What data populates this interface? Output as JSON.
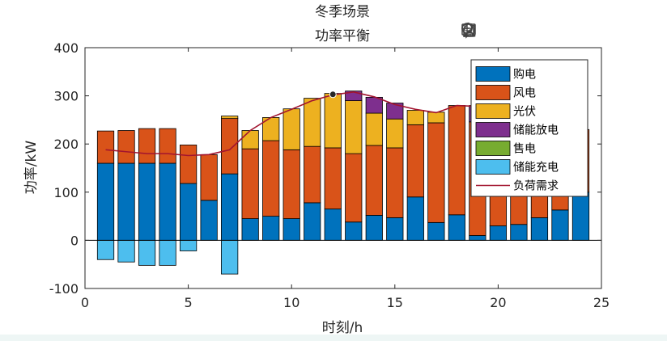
{
  "toolbar": {
    "icons": [
      "brush-icon",
      "data-tip-icon",
      "pan-hand-icon",
      "zoom-in-icon",
      "zoom-out-icon",
      "home-icon"
    ]
  },
  "chart_data": {
    "type": "bar",
    "title": "冬季场景",
    "subtitle": "功率平衡",
    "xlabel": "时刻/h",
    "ylabel": "功率/kW",
    "xlim": [
      0,
      25
    ],
    "ylim": [
      -100,
      400
    ],
    "xticks": [
      0,
      5,
      10,
      15,
      20,
      25
    ],
    "yticks": [
      -100,
      0,
      100,
      200,
      300,
      400
    ],
    "stacked": true,
    "grid": false,
    "legend_position": "top-right",
    "x": [
      1,
      2,
      3,
      4,
      5,
      6,
      7,
      8,
      9,
      10,
      11,
      12,
      13,
      14,
      15,
      16,
      17,
      18,
      19,
      20,
      21,
      22,
      23,
      24
    ],
    "series": [
      {
        "name": "购电",
        "color": "#0072BD",
        "values": [
          160,
          160,
          160,
          160,
          118,
          83,
          138,
          45,
          50,
          45,
          78,
          65,
          38,
          52,
          47,
          90,
          37,
          53,
          10,
          30,
          33,
          47,
          63,
          100
        ]
      },
      {
        "name": "风电",
        "color": "#D95319",
        "values": [
          67,
          68,
          72,
          72,
          80,
          95,
          115,
          145,
          157,
          143,
          117,
          127,
          142,
          145,
          145,
          150,
          207,
          227,
          236,
          215,
          197,
          173,
          157,
          130
        ]
      },
      {
        "name": "光伏",
        "color": "#EDB120",
        "values": [
          0,
          0,
          0,
          0,
          0,
          0,
          5,
          38,
          48,
          85,
          100,
          113,
          110,
          67,
          60,
          30,
          22,
          0,
          0,
          0,
          0,
          0,
          0,
          0
        ]
      },
      {
        "name": "储能放电",
        "color": "#7E2F8E",
        "values": [
          0,
          0,
          0,
          0,
          0,
          0,
          0,
          0,
          0,
          0,
          0,
          0,
          20,
          33,
          33,
          0,
          0,
          0,
          34,
          0,
          0,
          0,
          0,
          0
        ]
      },
      {
        "name": "售电",
        "color": "#77AC30",
        "values": [
          0,
          0,
          0,
          0,
          0,
          0,
          0,
          0,
          0,
          0,
          0,
          0,
          0,
          0,
          0,
          0,
          0,
          0,
          0,
          0,
          0,
          0,
          0,
          0
        ]
      },
      {
        "name": "储能充电",
        "color": "#4DBEEE",
        "values": [
          -40,
          -45,
          -52,
          -52,
          -22,
          0,
          -70,
          0,
          0,
          0,
          0,
          0,
          0,
          0,
          0,
          0,
          0,
          0,
          0,
          0,
          0,
          0,
          0,
          0
        ]
      }
    ],
    "line_series": {
      "name": "负荷需求",
      "color": "#A2142F",
      "values": [
        188,
        184,
        180,
        180,
        176,
        178,
        188,
        228,
        255,
        272,
        290,
        302,
        308,
        298,
        282,
        272,
        265,
        280,
        278,
        255,
        235,
        215,
        200,
        195
      ]
    },
    "marker_point": {
      "x": 12,
      "y": 303
    }
  }
}
